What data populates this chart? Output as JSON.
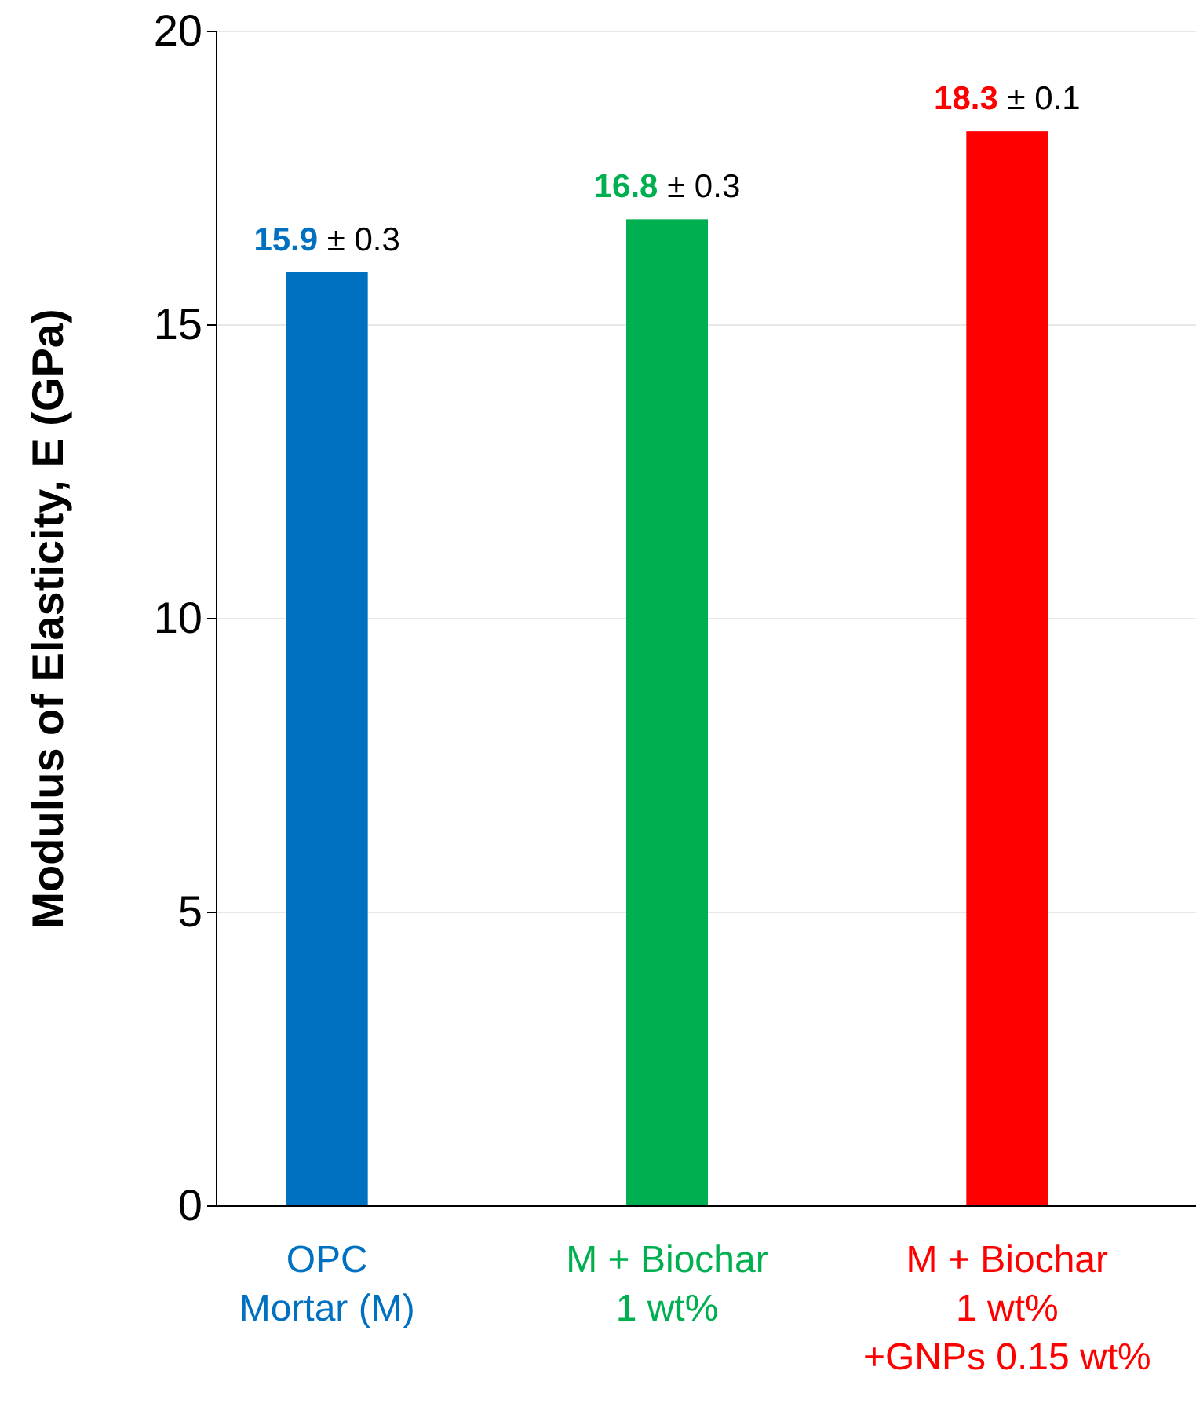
{
  "chart_data": {
    "type": "bar",
    "ylabel": "Modulus of Elasticity, E (GPa)",
    "categories": [
      "OPC\nMortar (M)",
      "M + Biochar\n1 wt%",
      "M + Biochar\n1 wt%\n+GNPs 0.15 wt%"
    ],
    "values": [
      15.9,
      16.8,
      18.3
    ],
    "colors": [
      "#0070c0",
      "#00b050",
      "#ff0000"
    ],
    "value_labels": [
      "15.9 ± 0.3",
      "16.8 ± 0.3",
      "18.3 ± 0.1"
    ],
    "ylim": [
      0,
      20
    ],
    "yticks": [
      0,
      5,
      10,
      15,
      20
    ],
    "grid": "y"
  }
}
